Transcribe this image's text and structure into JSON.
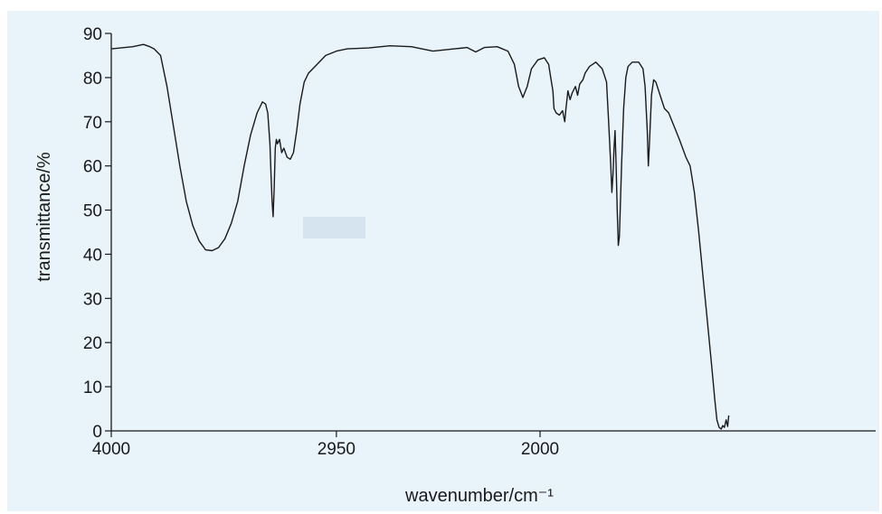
{
  "chart_data": {
    "type": "line",
    "title": "",
    "xlabel": "wavenumber/cm⁻¹",
    "ylabel": "transmittance/%",
    "xlim": [
      4000,
      500
    ],
    "ylim": [
      0,
      90
    ],
    "x_tick_labels": [
      "4000",
      "2950",
      "2000"
    ],
    "x_tick_values": [
      4000,
      2950,
      2000
    ],
    "y_ticks": [
      0,
      10,
      20,
      30,
      40,
      50,
      60,
      70,
      80,
      90
    ],
    "grid": false,
    "legend": "none",
    "series": [
      {
        "color": "#1a1a1a",
        "points": [
          [
            4000,
            86.5
          ],
          [
            3900,
            87.0
          ],
          [
            3850,
            87.5
          ],
          [
            3820,
            87.0
          ],
          [
            3800,
            86.5
          ],
          [
            3770,
            85.0
          ],
          [
            3740,
            78.0
          ],
          [
            3710,
            69.0
          ],
          [
            3680,
            60.0
          ],
          [
            3650,
            52.0
          ],
          [
            3620,
            46.5
          ],
          [
            3590,
            43.0
          ],
          [
            3560,
            41.0
          ],
          [
            3530,
            40.8
          ],
          [
            3500,
            41.5
          ],
          [
            3470,
            43.5
          ],
          [
            3440,
            47.0
          ],
          [
            3410,
            52.0
          ],
          [
            3380,
            60.0
          ],
          [
            3350,
            67.0
          ],
          [
            3320,
            72.0
          ],
          [
            3295,
            74.5
          ],
          [
            3280,
            74.0
          ],
          [
            3270,
            72.0
          ],
          [
            3260,
            65.0
          ],
          [
            3255,
            58.0
          ],
          [
            3250,
            52.0
          ],
          [
            3245,
            48.5
          ],
          [
            3240,
            55.0
          ],
          [
            3235,
            64.0
          ],
          [
            3230,
            66.0
          ],
          [
            3225,
            65.0
          ],
          [
            3215,
            66.0
          ],
          [
            3205,
            63.0
          ],
          [
            3195,
            64.0
          ],
          [
            3180,
            62.0
          ],
          [
            3165,
            61.5
          ],
          [
            3150,
            63.0
          ],
          [
            3135,
            68.0
          ],
          [
            3120,
            74.0
          ],
          [
            3100,
            79.0
          ],
          [
            3080,
            81.0
          ],
          [
            3050,
            82.5
          ],
          [
            3000,
            85.0
          ],
          [
            2950,
            86.0
          ],
          [
            2900,
            86.5
          ],
          [
            2800,
            86.7
          ],
          [
            2700,
            87.2
          ],
          [
            2600,
            87.0
          ],
          [
            2500,
            86.0
          ],
          [
            2400,
            86.5
          ],
          [
            2340,
            86.8
          ],
          [
            2300,
            85.8
          ],
          [
            2260,
            86.8
          ],
          [
            2200,
            87.0
          ],
          [
            2150,
            86.0
          ],
          [
            2120,
            83.0
          ],
          [
            2100,
            78.0
          ],
          [
            2080,
            75.5
          ],
          [
            2060,
            78.0
          ],
          [
            2040,
            82.0
          ],
          [
            2010,
            84.0
          ],
          [
            1980,
            84.5
          ],
          [
            1960,
            83.0
          ],
          [
            1950,
            80.0
          ],
          [
            1940,
            77.0
          ],
          [
            1935,
            73.0
          ],
          [
            1925,
            72.0
          ],
          [
            1910,
            71.5
          ],
          [
            1895,
            72.5
          ],
          [
            1885,
            70.0
          ],
          [
            1880,
            72.5
          ],
          [
            1870,
            77.0
          ],
          [
            1860,
            75.0
          ],
          [
            1850,
            76.5
          ],
          [
            1835,
            78.0
          ],
          [
            1825,
            76.0
          ],
          [
            1815,
            78.5
          ],
          [
            1800,
            79.5
          ],
          [
            1790,
            81.0
          ],
          [
            1770,
            82.5
          ],
          [
            1740,
            83.5
          ],
          [
            1710,
            82.0
          ],
          [
            1690,
            79.0
          ],
          [
            1680,
            70.0
          ],
          [
            1670,
            60.0
          ],
          [
            1665,
            54.0
          ],
          [
            1660,
            58.0
          ],
          [
            1655,
            64.0
          ],
          [
            1650,
            68.0
          ],
          [
            1645,
            60.0
          ],
          [
            1640,
            50.0
          ],
          [
            1635,
            42.0
          ],
          [
            1630,
            44.0
          ],
          [
            1620,
            60.0
          ],
          [
            1610,
            73.0
          ],
          [
            1600,
            80.0
          ],
          [
            1590,
            82.5
          ],
          [
            1570,
            83.5
          ],
          [
            1540,
            83.5
          ],
          [
            1520,
            82.0
          ],
          [
            1510,
            78.0
          ],
          [
            1500,
            68.0
          ],
          [
            1495,
            60.0
          ],
          [
            1490,
            65.0
          ],
          [
            1480,
            76.0
          ],
          [
            1470,
            79.5
          ],
          [
            1460,
            79.0
          ],
          [
            1440,
            76.0
          ],
          [
            1420,
            73.0
          ],
          [
            1400,
            72.0
          ],
          [
            1350,
            66.0
          ],
          [
            1320,
            62.0
          ],
          [
            1300,
            60.0
          ],
          [
            1280,
            54.0
          ],
          [
            1260,
            45.0
          ],
          [
            1240,
            35.0
          ],
          [
            1220,
            25.0
          ],
          [
            1200,
            15.0
          ],
          [
            1185,
            7.0
          ],
          [
            1175,
            2.5
          ],
          [
            1165,
            0.8
          ],
          [
            1155,
            0.4
          ],
          [
            1148,
            1.2
          ],
          [
            1140,
            0.8
          ],
          [
            1132,
            2.5
          ],
          [
            1125,
            1.0
          ],
          [
            1120,
            3.5
          ]
        ]
      }
    ]
  }
}
